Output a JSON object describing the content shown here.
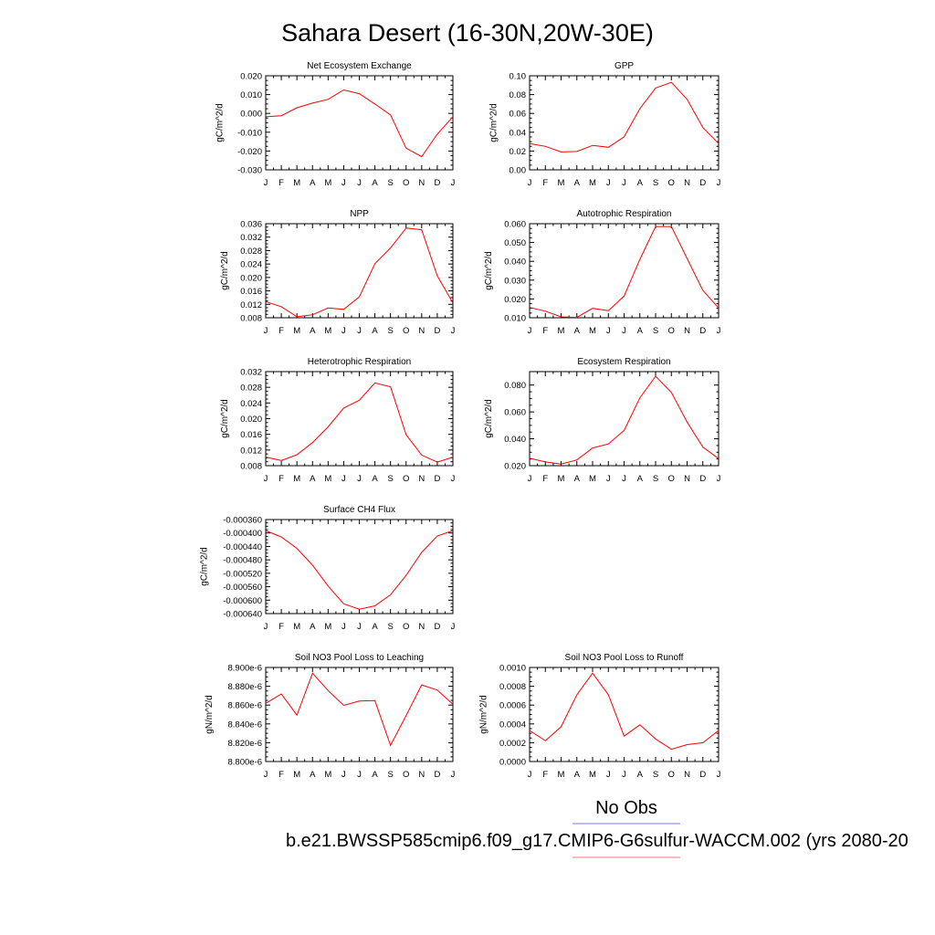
{
  "page_title": "Sahara Desert (16-30N,20W-30E)",
  "month_labels": [
    "J",
    "F",
    "M",
    "A",
    "M",
    "J",
    "J",
    "A",
    "S",
    "O",
    "N",
    "D",
    "J"
  ],
  "legend": {
    "entries": [
      {
        "label": "No Obs",
        "color": "#7777ee"
      },
      {
        "label": "b.e21.BWSSP585cmip6.f09_g17.CMIP6-G6sulfur-WACCM.002 (yrs 2080-20",
        "color": "#ee7777"
      }
    ]
  },
  "series_color": "#ff0000",
  "chart_data": [
    {
      "type": "line",
      "title": "Net Ecosystem Exchange",
      "ylabel": "gC/m^2/d",
      "ylim": [
        -0.03,
        0.02
      ],
      "yticks": [
        -0.03,
        -0.02,
        -0.01,
        0.0,
        0.01,
        0.02
      ],
      "ytick_labels": [
        "-0.030",
        "-0.020",
        "-0.010",
        "0.000",
        "0.010",
        "0.020"
      ],
      "x": [
        "J",
        "F",
        "M",
        "A",
        "M",
        "J",
        "J",
        "A",
        "S",
        "O",
        "N",
        "D",
        "J"
      ],
      "values": [
        -0.0018,
        -0.0012,
        0.003,
        0.0055,
        0.0075,
        0.0125,
        0.0105,
        0.005,
        -0.0008,
        -0.0185,
        -0.023,
        -0.011,
        -0.0018
      ]
    },
    {
      "type": "line",
      "title": "GPP",
      "ylabel": "gC/m^2/d",
      "ylim": [
        0.0,
        0.1
      ],
      "yticks": [
        0.0,
        0.02,
        0.04,
        0.06,
        0.08,
        0.1
      ],
      "ytick_labels": [
        "0.00",
        "0.02",
        "0.04",
        "0.06",
        "0.08",
        "0.10"
      ],
      "x": [
        "J",
        "F",
        "M",
        "A",
        "M",
        "J",
        "J",
        "A",
        "S",
        "O",
        "N",
        "D",
        "J"
      ],
      "values": [
        0.028,
        0.025,
        0.019,
        0.0195,
        0.026,
        0.024,
        0.035,
        0.065,
        0.087,
        0.093,
        0.075,
        0.045,
        0.028
      ]
    },
    {
      "type": "line",
      "title": "NPP",
      "ylabel": "gC/m^2/d",
      "ylim": [
        0.008,
        0.036
      ],
      "yticks": [
        0.008,
        0.012,
        0.016,
        0.02,
        0.024,
        0.028,
        0.032,
        0.036
      ],
      "ytick_labels": [
        "0.008",
        "0.012",
        "0.016",
        "0.020",
        "0.024",
        "0.028",
        "0.032",
        "0.036"
      ],
      "x": [
        "J",
        "F",
        "M",
        "A",
        "M",
        "J",
        "J",
        "A",
        "S",
        "O",
        "N",
        "D",
        "J"
      ],
      "values": [
        0.0128,
        0.0113,
        0.0083,
        0.0089,
        0.0109,
        0.0105,
        0.0142,
        0.0241,
        0.0288,
        0.0347,
        0.0342,
        0.0205,
        0.0124
      ]
    },
    {
      "type": "line",
      "title": "Autotrophic Respiration",
      "ylabel": "gC/m^2/d",
      "ylim": [
        0.01,
        0.06
      ],
      "yticks": [
        0.01,
        0.02,
        0.03,
        0.04,
        0.05,
        0.06
      ],
      "ytick_labels": [
        "0.010",
        "0.020",
        "0.030",
        "0.040",
        "0.050",
        "0.060"
      ],
      "x": [
        "J",
        "F",
        "M",
        "A",
        "M",
        "J",
        "J",
        "A",
        "S",
        "O",
        "N",
        "D",
        "J"
      ],
      "values": [
        0.0155,
        0.0135,
        0.0105,
        0.0102,
        0.015,
        0.0138,
        0.0215,
        0.041,
        0.0585,
        0.0585,
        0.0415,
        0.0245,
        0.0152
      ]
    },
    {
      "type": "line",
      "title": "Heterotrophic Respiration",
      "ylabel": "gC/m^2/d",
      "ylim": [
        0.008,
        0.032
      ],
      "yticks": [
        0.008,
        0.012,
        0.016,
        0.02,
        0.024,
        0.028,
        0.032
      ],
      "ytick_labels": [
        "0.008",
        "0.012",
        "0.016",
        "0.020",
        "0.024",
        "0.028",
        "0.032"
      ],
      "x": [
        "J",
        "F",
        "M",
        "A",
        "M",
        "J",
        "J",
        "A",
        "S",
        "O",
        "N",
        "D",
        "J"
      ],
      "values": [
        0.0102,
        0.0093,
        0.0108,
        0.0139,
        0.0179,
        0.0227,
        0.0247,
        0.0291,
        0.0281,
        0.0159,
        0.0107,
        0.0089,
        0.0102
      ]
    },
    {
      "type": "line",
      "title": "Ecosystem Respiration",
      "ylabel": "gC/m^2/d",
      "ylim": [
        0.02,
        0.09
      ],
      "yticks": [
        0.02,
        0.04,
        0.06,
        0.08
      ],
      "ytick_labels": [
        "0.020",
        "0.040",
        "0.060",
        "0.080"
      ],
      "x": [
        "J",
        "F",
        "M",
        "A",
        "M",
        "J",
        "J",
        "A",
        "S",
        "O",
        "N",
        "D",
        "J"
      ],
      "values": [
        0.0255,
        0.0228,
        0.0212,
        0.0243,
        0.0332,
        0.0362,
        0.0462,
        0.0705,
        0.0865,
        0.0745,
        0.0525,
        0.0338,
        0.0252
      ]
    },
    {
      "type": "line",
      "title": "Surface CH4 Flux",
      "ylabel": "gC/m^2/d",
      "ylim": [
        -0.00064,
        -0.00036
      ],
      "yticks": [
        -0.00064,
        -0.0006,
        -0.00056,
        -0.00052,
        -0.00048,
        -0.00044,
        -0.0004,
        -0.00036
      ],
      "ytick_labels": [
        "-0.000640",
        "-0.000600",
        "-0.000560",
        "-0.000520",
        "-0.000480",
        "-0.000440",
        "-0.000400",
        "-0.000360"
      ],
      "x": [
        "J",
        "F",
        "M",
        "A",
        "M",
        "J",
        "J",
        "A",
        "S",
        "O",
        "N",
        "D",
        "J"
      ],
      "values": [
        -0.000393,
        -0.000412,
        -0.000446,
        -0.000496,
        -0.000558,
        -0.000611,
        -0.000627,
        -0.000617,
        -0.000584,
        -0.000526,
        -0.000458,
        -0.000409,
        -0.000393
      ]
    },
    {
      "type": "line",
      "title": "Soil NO3 Pool Loss to Leaching",
      "ylabel": "gN/m^2/d",
      "ylim": [
        8.8e-06,
        8.9e-06
      ],
      "yticks": [
        8.8e-06,
        8.82e-06,
        8.84e-06,
        8.86e-06,
        8.88e-06,
        8.9e-06
      ],
      "ytick_labels": [
        "8.800e-6",
        "8.820e-6",
        "8.840e-6",
        "8.860e-6",
        "8.880e-6",
        "8.900e-6"
      ],
      "x": [
        "J",
        "F",
        "M",
        "A",
        "M",
        "J",
        "J",
        "A",
        "S",
        "O",
        "N",
        "D",
        "J"
      ],
      "values": [
        8.8618e-06,
        8.8718e-06,
        8.8493e-06,
        8.8939e-06,
        8.8754e-06,
        8.8597e-06,
        8.8643e-06,
        8.8648e-06,
        8.8171e-06,
        8.8489e-06,
        8.8815e-06,
        8.8759e-06,
        8.861e-06
      ]
    },
    {
      "type": "line",
      "title": "Soil NO3 Pool Loss to Runoff",
      "ylabel": "gN/m^2/d",
      "ylim": [
        0.0,
        0.001
      ],
      "yticks": [
        0.0,
        0.0002,
        0.0004,
        0.0006,
        0.0008,
        0.001
      ],
      "ytick_labels": [
        "0.0000",
        "0.0002",
        "0.0004",
        "0.0006",
        "0.0008",
        "0.0010"
      ],
      "x": [
        "J",
        "F",
        "M",
        "A",
        "M",
        "J",
        "J",
        "A",
        "S",
        "O",
        "N",
        "D",
        "J"
      ],
      "values": [
        0.00033,
        0.00022,
        0.00037,
        0.00071,
        0.00094,
        0.00071,
        0.00027,
        0.00039,
        0.00024,
        0.00013,
        0.00018,
        0.0002,
        0.00033
      ]
    }
  ]
}
